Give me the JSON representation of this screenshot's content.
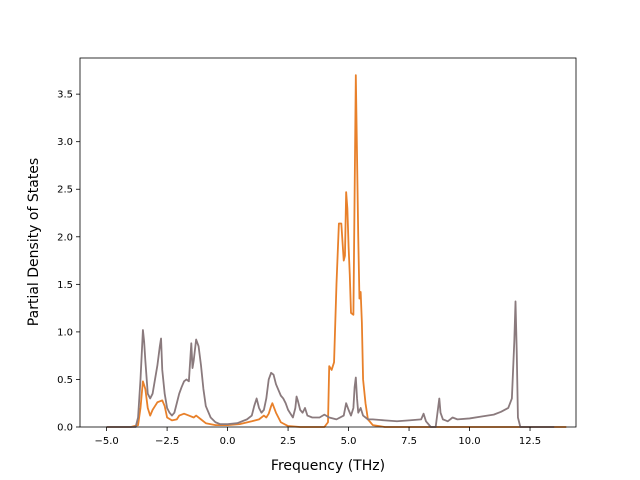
{
  "chart_data": {
    "type": "line",
    "xlabel": "Frequency (THz)",
    "ylabel": "Partial Density of States",
    "xlim": [
      -6.1,
      14.4
    ],
    "ylim": [
      0,
      3.88
    ],
    "x_ticks": [
      "−5.0",
      "−2.5",
      "0.0",
      "2.5",
      "5.0",
      "7.5",
      "10.0",
      "12.5"
    ],
    "x_tick_values": [
      -5,
      -2.5,
      0,
      2.5,
      5,
      7.5,
      10,
      12.5
    ],
    "y_ticks": [
      "0.0",
      "0.5",
      "1.0",
      "1.5",
      "2.0",
      "2.5",
      "3.0",
      "3.5"
    ],
    "y_tick_values": [
      0,
      0.5,
      1,
      1.5,
      2,
      2.5,
      3,
      3.5
    ],
    "grid": false,
    "series": [
      {
        "color": "#e8802a",
        "points": [
          [
            -5.0,
            0.0
          ],
          [
            -4.0,
            0.0
          ],
          [
            -3.7,
            0.02
          ],
          [
            -3.6,
            0.2
          ],
          [
            -3.5,
            0.48
          ],
          [
            -3.4,
            0.4
          ],
          [
            -3.3,
            0.2
          ],
          [
            -3.2,
            0.12
          ],
          [
            -3.1,
            0.18
          ],
          [
            -3.0,
            0.22
          ],
          [
            -2.9,
            0.26
          ],
          [
            -2.8,
            0.27
          ],
          [
            -2.7,
            0.28
          ],
          [
            -2.6,
            0.22
          ],
          [
            -2.5,
            0.1
          ],
          [
            -2.3,
            0.07
          ],
          [
            -2.1,
            0.08
          ],
          [
            -2.0,
            0.12
          ],
          [
            -1.8,
            0.14
          ],
          [
            -1.6,
            0.12
          ],
          [
            -1.4,
            0.1
          ],
          [
            -1.3,
            0.12
          ],
          [
            -1.1,
            0.08
          ],
          [
            -0.9,
            0.04
          ],
          [
            -0.5,
            0.02
          ],
          [
            0.0,
            0.02
          ],
          [
            0.5,
            0.03
          ],
          [
            1.0,
            0.06
          ],
          [
            1.3,
            0.08
          ],
          [
            1.5,
            0.12
          ],
          [
            1.6,
            0.1
          ],
          [
            1.7,
            0.14
          ],
          [
            1.8,
            0.22
          ],
          [
            1.85,
            0.25
          ],
          [
            2.0,
            0.15
          ],
          [
            2.2,
            0.05
          ],
          [
            2.5,
            0.01
          ],
          [
            3.0,
            0.0
          ],
          [
            4.0,
            0.0
          ],
          [
            4.15,
            0.05
          ],
          [
            4.2,
            0.64
          ],
          [
            4.3,
            0.6
          ],
          [
            4.4,
            0.68
          ],
          [
            4.5,
            1.5
          ],
          [
            4.6,
            2.14
          ],
          [
            4.7,
            2.14
          ],
          [
            4.8,
            1.75
          ],
          [
            4.85,
            1.8
          ],
          [
            4.9,
            2.47
          ],
          [
            4.95,
            2.3
          ],
          [
            5.0,
            1.9
          ],
          [
            5.05,
            1.6
          ],
          [
            5.1,
            1.2
          ],
          [
            5.2,
            1.18
          ],
          [
            5.3,
            3.7
          ],
          [
            5.4,
            2.0
          ],
          [
            5.45,
            1.35
          ],
          [
            5.5,
            1.42
          ],
          [
            5.55,
            1.1
          ],
          [
            5.6,
            0.5
          ],
          [
            5.7,
            0.25
          ],
          [
            5.8,
            0.08
          ],
          [
            6.0,
            0.02
          ],
          [
            6.5,
            0.0
          ],
          [
            14.0,
            0.0
          ]
        ]
      },
      {
        "color": "#8a7a7d",
        "points": [
          [
            -5.0,
            0.0
          ],
          [
            -3.8,
            0.0
          ],
          [
            -3.7,
            0.1
          ],
          [
            -3.6,
            0.5
          ],
          [
            -3.5,
            1.02
          ],
          [
            -3.45,
            0.9
          ],
          [
            -3.4,
            0.7
          ],
          [
            -3.3,
            0.35
          ],
          [
            -3.2,
            0.3
          ],
          [
            -3.1,
            0.35
          ],
          [
            -3.0,
            0.5
          ],
          [
            -2.9,
            0.65
          ],
          [
            -2.8,
            0.85
          ],
          [
            -2.75,
            0.93
          ],
          [
            -2.7,
            0.6
          ],
          [
            -2.6,
            0.35
          ],
          [
            -2.5,
            0.2
          ],
          [
            -2.4,
            0.15
          ],
          [
            -2.3,
            0.12
          ],
          [
            -2.2,
            0.15
          ],
          [
            -2.1,
            0.25
          ],
          [
            -2.0,
            0.35
          ],
          [
            -1.9,
            0.42
          ],
          [
            -1.8,
            0.48
          ],
          [
            -1.7,
            0.5
          ],
          [
            -1.6,
            0.48
          ],
          [
            -1.5,
            0.88
          ],
          [
            -1.45,
            0.62
          ],
          [
            -1.4,
            0.7
          ],
          [
            -1.3,
            0.92
          ],
          [
            -1.2,
            0.85
          ],
          [
            -1.1,
            0.65
          ],
          [
            -1.0,
            0.4
          ],
          [
            -0.9,
            0.22
          ],
          [
            -0.7,
            0.1
          ],
          [
            -0.5,
            0.05
          ],
          [
            -0.3,
            0.03
          ],
          [
            0.0,
            0.03
          ],
          [
            0.4,
            0.04
          ],
          [
            0.8,
            0.08
          ],
          [
            1.0,
            0.12
          ],
          [
            1.1,
            0.22
          ],
          [
            1.2,
            0.3
          ],
          [
            1.3,
            0.2
          ],
          [
            1.4,
            0.15
          ],
          [
            1.5,
            0.18
          ],
          [
            1.6,
            0.3
          ],
          [
            1.7,
            0.5
          ],
          [
            1.8,
            0.57
          ],
          [
            1.9,
            0.55
          ],
          [
            2.0,
            0.45
          ],
          [
            2.2,
            0.33
          ],
          [
            2.3,
            0.3
          ],
          [
            2.4,
            0.25
          ],
          [
            2.5,
            0.18
          ],
          [
            2.7,
            0.1
          ],
          [
            2.8,
            0.2
          ],
          [
            2.85,
            0.32
          ],
          [
            2.9,
            0.28
          ],
          [
            3.0,
            0.18
          ],
          [
            3.1,
            0.15
          ],
          [
            3.2,
            0.2
          ],
          [
            3.3,
            0.12
          ],
          [
            3.5,
            0.1
          ],
          [
            3.8,
            0.1
          ],
          [
            4.0,
            0.13
          ],
          [
            4.2,
            0.1
          ],
          [
            4.5,
            0.08
          ],
          [
            4.8,
            0.12
          ],
          [
            4.9,
            0.25
          ],
          [
            5.0,
            0.18
          ],
          [
            5.1,
            0.12
          ],
          [
            5.2,
            0.2
          ],
          [
            5.25,
            0.42
          ],
          [
            5.3,
            0.52
          ],
          [
            5.35,
            0.3
          ],
          [
            5.4,
            0.15
          ],
          [
            5.5,
            0.2
          ],
          [
            5.6,
            0.12
          ],
          [
            5.8,
            0.08
          ],
          [
            6.0,
            0.08
          ],
          [
            6.5,
            0.07
          ],
          [
            7.0,
            0.06
          ],
          [
            7.5,
            0.07
          ],
          [
            8.0,
            0.08
          ],
          [
            8.1,
            0.14
          ],
          [
            8.2,
            0.06
          ],
          [
            8.4,
            0.0
          ],
          [
            8.6,
            0.0
          ],
          [
            8.7,
            0.2
          ],
          [
            8.75,
            0.3
          ],
          [
            8.8,
            0.15
          ],
          [
            8.9,
            0.08
          ],
          [
            9.0,
            0.07
          ],
          [
            9.1,
            0.06
          ],
          [
            9.3,
            0.1
          ],
          [
            9.5,
            0.08
          ],
          [
            10.0,
            0.09
          ],
          [
            10.5,
            0.11
          ],
          [
            11.0,
            0.13
          ],
          [
            11.3,
            0.16
          ],
          [
            11.6,
            0.2
          ],
          [
            11.75,
            0.3
          ],
          [
            11.85,
            0.9
          ],
          [
            11.9,
            1.32
          ],
          [
            11.95,
            0.8
          ],
          [
            12.0,
            0.1
          ],
          [
            12.1,
            0.0
          ],
          [
            13.5,
            0.0
          ]
        ]
      }
    ]
  }
}
